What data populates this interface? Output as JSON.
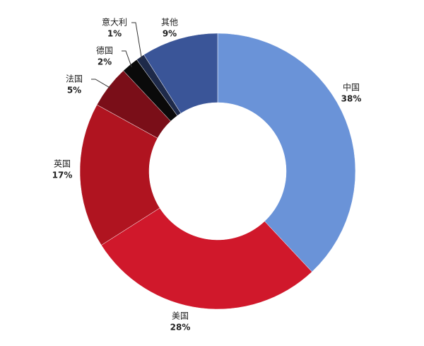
{
  "chart_data": {
    "type": "donut",
    "categories": [
      "中国",
      "美国",
      "英国",
      "法国",
      "德国",
      "意大利",
      "其他"
    ],
    "values": [
      38,
      28,
      17,
      5,
      2,
      1,
      9
    ],
    "value_labels": [
      "38%",
      "28%",
      "17%",
      "5%",
      "2%",
      "1%",
      "9%"
    ],
    "colors": [
      "#6a93d8",
      "#d0182b",
      "#b01420",
      "#7a0e18",
      "#0a0a0a",
      "#1e2a4a",
      "#3a5598"
    ]
  }
}
